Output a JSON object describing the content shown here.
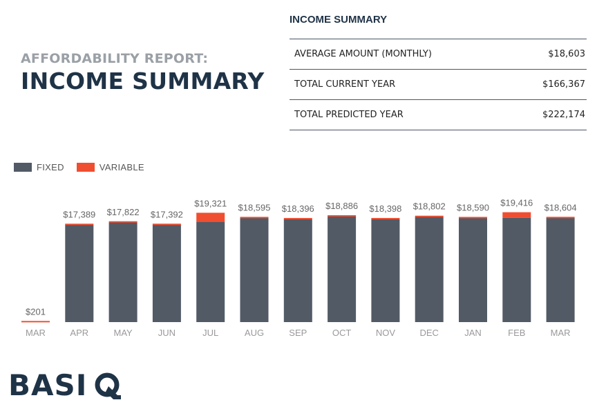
{
  "report": {
    "kicker": "AFFORDABILITY REPORT:",
    "heading": "INCOME SUMMARY"
  },
  "summary": {
    "title": "INCOME SUMMARY",
    "rows": [
      {
        "label": "AVERAGE AMOUNT (MONTHLY)",
        "value": "$18,603"
      },
      {
        "label": "TOTAL CURRENT YEAR",
        "value": "$166,367"
      },
      {
        "label": "TOTAL PREDICTED YEAR",
        "value": "$222,174"
      }
    ]
  },
  "colors": {
    "fixed": "#525a66",
    "variable": "#f04e30",
    "title": "#1f3347",
    "axis": "#999999"
  },
  "logo": {
    "text": "BASIQ"
  },
  "chart_data": {
    "type": "bar",
    "stacked": true,
    "legend_position": "top-left",
    "grid": false,
    "categories": [
      "MAR",
      "APR",
      "MAY",
      "JUN",
      "JUL",
      "AUG",
      "SEP",
      "OCT",
      "NOV",
      "DEC",
      "JAN",
      "FEB",
      "MAR"
    ],
    "series": [
      {
        "name": "FIXED",
        "values": [
          0,
          17189,
          17622,
          17192,
          17721,
          18395,
          18196,
          18686,
          18198,
          18602,
          18390,
          18416,
          18404
        ]
      },
      {
        "name": "VARIABLE",
        "values": [
          201,
          200,
          200,
          200,
          1600,
          200,
          200,
          200,
          200,
          200,
          200,
          1000,
          200
        ]
      }
    ],
    "totals": [
      "$201",
      "$17,389",
      "$17,822",
      "$17,392",
      "$19,321",
      "$18,595",
      "$18,396",
      "$18,886",
      "$18,398",
      "$18,802",
      "$18,590",
      "$19,416",
      "$18,604"
    ],
    "ylim": [
      0,
      19500
    ]
  }
}
